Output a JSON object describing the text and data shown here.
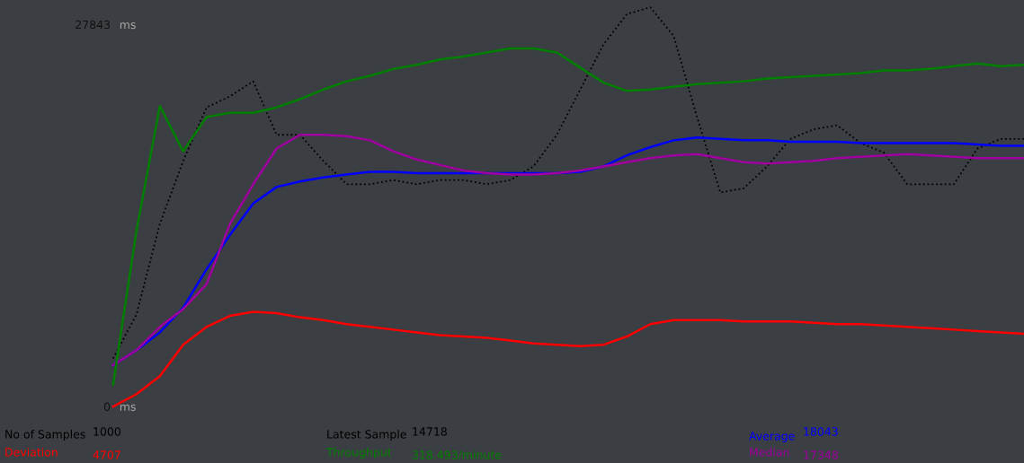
{
  "chart_data": {
    "type": "line",
    "categories": [
      null,
      null,
      null,
      null,
      null,
      null,
      null,
      null,
      null,
      null,
      null,
      null,
      null,
      null,
      null,
      null,
      null,
      null,
      null,
      null,
      null,
      null,
      null,
      null,
      null,
      null,
      null,
      null,
      null,
      null,
      null,
      null,
      null,
      null,
      null,
      null,
      null,
      null,
      null,
      null
    ],
    "ylim": [
      0,
      29300
    ],
    "yticks": [
      27843,
      0
    ],
    "ylabel": "ms",
    "tick_labels": "y",
    "grid": false,
    "legend": false,
    "series": [
      {
        "type": "line",
        "line_style": "dotted",
        "color": "#000000",
        "values": [
          3500,
          6700,
          13300,
          17900,
          21800,
          22600,
          23700,
          19800,
          19800,
          17900,
          16200,
          16200,
          16500,
          16200,
          16500,
          16500,
          16200,
          16500,
          17500,
          19800,
          23100,
          26400,
          28600,
          29100,
          27000,
          21100,
          15600,
          15900,
          17500,
          19500,
          20200,
          20500,
          19200,
          18500,
          16200,
          16200,
          16200,
          18800,
          19500,
          19500
        ]
      },
      {
        "name": "Average",
        "color": "#0000ff",
        "values": [
          3000,
          4100,
          5400,
          7200,
          10000,
          12500,
          14800,
          16000,
          16400,
          16700,
          16900,
          17100,
          17100,
          17000,
          17000,
          17000,
          17000,
          17000,
          17000,
          17000,
          17100,
          17500,
          18300,
          18900,
          19400,
          19600,
          19500,
          19400,
          19400,
          19300,
          19300,
          19300,
          19200,
          19200,
          19200,
          19200,
          19200,
          19100,
          19000,
          19000
        ]
      },
      {
        "name": "Median",
        "color": "#a000a0",
        "values": [
          3000,
          4100,
          5800,
          7100,
          8900,
          13300,
          16200,
          18800,
          19800,
          19800,
          19700,
          19400,
          18600,
          18000,
          17600,
          17200,
          17000,
          16900,
          16900,
          17000,
          17200,
          17500,
          17800,
          18100,
          18300,
          18400,
          18100,
          17800,
          17700,
          17800,
          17900,
          18100,
          18200,
          18300,
          18400,
          18300,
          18200,
          18100,
          18100,
          18100
        ]
      },
      {
        "name": "Deviation",
        "color": "#ff0000",
        "values": [
          0,
          900,
          2200,
          4500,
          5800,
          6600,
          6900,
          6800,
          6500,
          6300,
          6000,
          5800,
          5600,
          5400,
          5200,
          5100,
          5000,
          4800,
          4600,
          4500,
          4400,
          4500,
          5100,
          6000,
          6300,
          6300,
          6300,
          6200,
          6200,
          6200,
          6100,
          6000,
          6000,
          5900,
          5800,
          5700,
          5600,
          5500,
          5400,
          5300
        ]
      },
      {
        "name": "Throughput",
        "color": "#008000",
        "values": [
          1600,
          12800,
          21900,
          18600,
          21100,
          21400,
          21400,
          21800,
          22400,
          23100,
          23700,
          24100,
          24600,
          24900,
          25300,
          25500,
          25800,
          26100,
          26100,
          25800,
          24700,
          23600,
          23000,
          23100,
          23300,
          23500,
          23600,
          23700,
          23900,
          24000,
          24100,
          24200,
          24300,
          24500,
          24500,
          24600,
          24800,
          25000,
          24800,
          24900
        ]
      }
    ],
    "annotations": [
      "No of Samples",
      "1000",
      "Latest Sample",
      "14718",
      "4707",
      "318.493/minute",
      "18043",
      "17348"
    ]
  }
}
